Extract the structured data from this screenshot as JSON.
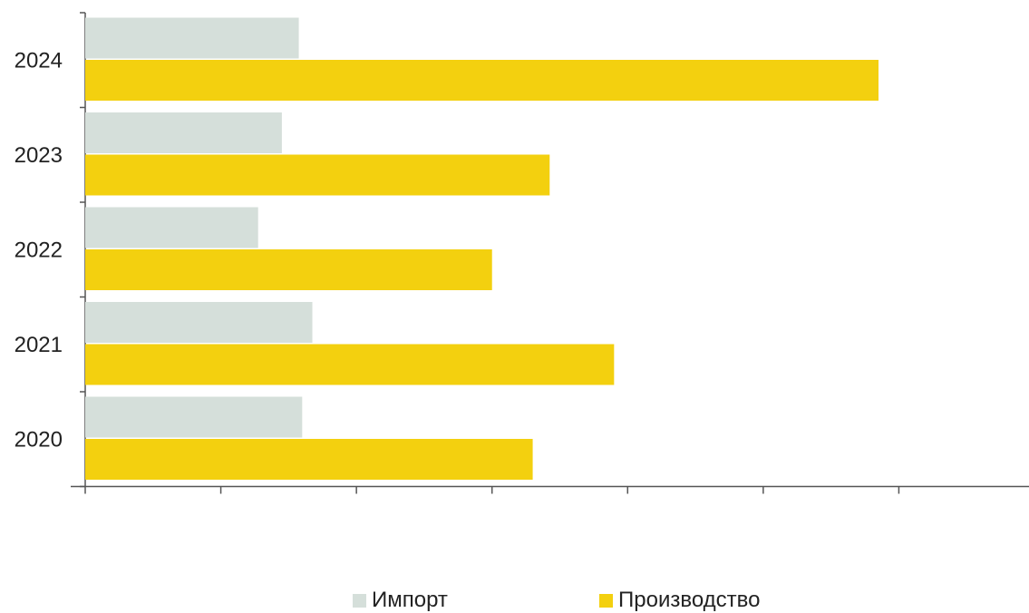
{
  "chart_data": {
    "type": "bar",
    "orientation": "horizontal",
    "categories": [
      "2024",
      "2023",
      "2022",
      "2021",
      "2020"
    ],
    "series": [
      {
        "name": "Импорт",
        "values": [
          31.5,
          29,
          25.5,
          33.5,
          32
        ],
        "color": "#d5dfda"
      },
      {
        "name": "Производство",
        "values": [
          117,
          68.5,
          60,
          78,
          66
        ],
        "color": "#f3d00f"
      }
    ],
    "xlim": [
      0,
      140
    ],
    "x_ticks": [
      0,
      20,
      40,
      60,
      80,
      100,
      120
    ],
    "tick_labels_visible": false,
    "grid": false,
    "legend_position": "bottom-center",
    "title": "",
    "xlabel": "",
    "ylabel": ""
  }
}
